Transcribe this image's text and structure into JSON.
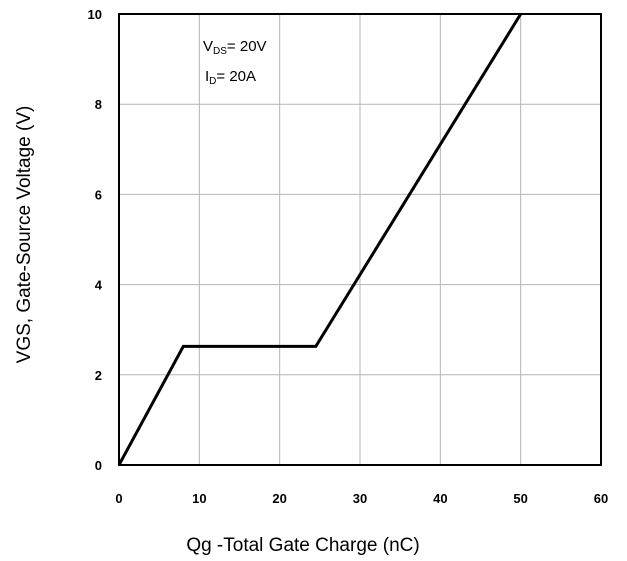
{
  "chart_data": {
    "type": "line",
    "title": "",
    "xlabel": "Qg -Total Gate Charge (nC)",
    "ylabel": "VGS, Gate-Source Voltage (V)",
    "xlim": [
      0,
      60
    ],
    "ylim": [
      0,
      10
    ],
    "x_ticks": [
      0,
      10,
      20,
      30,
      40,
      50,
      60
    ],
    "y_ticks": [
      0,
      2,
      4,
      6,
      8,
      10
    ],
    "grid": true,
    "legend": "none",
    "series": [
      {
        "x": [
          0,
          8,
          24.5,
          50
        ],
        "y": [
          0,
          2.63,
          2.63,
          10
        ]
      }
    ],
    "annotations": [
      {
        "prefix": "V",
        "sub": "DS",
        "suffix": "= 20V"
      },
      {
        "prefix": "I",
        "sub": "D",
        "suffix": "= 20A"
      }
    ],
    "colors": {
      "line": "#000000",
      "grid": "#b4b4b4",
      "frame": "#000000"
    }
  }
}
